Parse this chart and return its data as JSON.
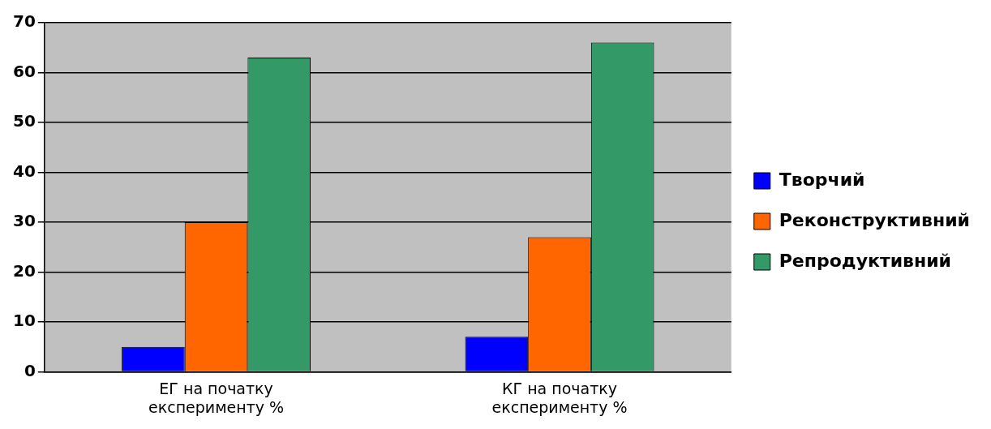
{
  "chart_data": {
    "type": "bar",
    "categories": [
      "ЕГ на початку експерименту %",
      "КГ на початку експерименту %"
    ],
    "series": [
      {
        "name": "Творчий",
        "color": "#0000ff",
        "values": [
          5,
          7
        ]
      },
      {
        "name": "Реконструктивний",
        "color": "#ff6600",
        "values": [
          30,
          27
        ]
      },
      {
        "name": "Репродуктивний",
        "color": "#339966",
        "values": [
          63,
          66
        ]
      }
    ],
    "ylim": [
      0,
      70
    ],
    "yticks": [
      0,
      10,
      20,
      30,
      40,
      50,
      60,
      70
    ],
    "grid": "y",
    "legend": "right"
  }
}
